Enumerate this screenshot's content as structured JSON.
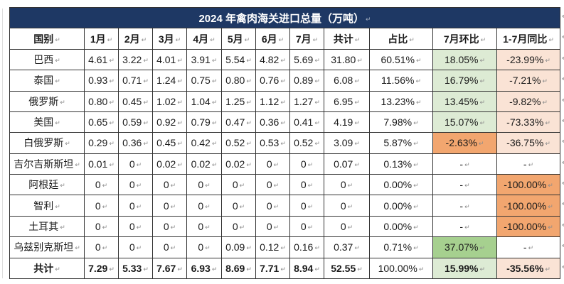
{
  "title": "2024 年禽肉海关进口总量（万吨）",
  "columns": [
    "国别",
    "1月",
    "2月",
    "3月",
    "4月",
    "5月",
    "6月",
    "7月",
    "共计",
    "占比",
    "7月环比",
    "1-7月同比"
  ],
  "rows": [
    {
      "label": "巴西",
      "cells": [
        "4.61",
        "3.22",
        "4.01",
        "3.91",
        "5.54",
        "4.82",
        "5.69",
        "31.80",
        "60.51%"
      ],
      "mom": "18.05%",
      "mom_style": "green",
      "yoy": "-23.99%",
      "yoy_style": "peach",
      "bold": false
    },
    {
      "label": "泰国",
      "cells": [
        "0.93",
        "0.71",
        "1.24",
        "0.75",
        "0.80",
        "0.76",
        "0.89",
        "6.08",
        "11.56%"
      ],
      "mom": "16.79%",
      "mom_style": "green",
      "yoy": "-7.21%",
      "yoy_style": "peach",
      "bold": false
    },
    {
      "label": "俄罗斯",
      "cells": [
        "0.80",
        "0.45",
        "1.02",
        "1.04",
        "1.25",
        "1.12",
        "1.27",
        "6.95",
        "13.23%"
      ],
      "mom": "13.45%",
      "mom_style": "green",
      "yoy": "-9.82%",
      "yoy_style": "peach",
      "bold": false
    },
    {
      "label": "美国",
      "cells": [
        "0.65",
        "0.59",
        "0.92",
        "0.79",
        "0.47",
        "0.36",
        "0.41",
        "4.19",
        "7.98%"
      ],
      "mom": "15.07%",
      "mom_style": "green",
      "yoy": "-73.33%",
      "yoy_style": "peach",
      "bold": false
    },
    {
      "label": "白俄罗斯",
      "cells": [
        "0.29",
        "0.36",
        "0.45",
        "0.42",
        "0.52",
        "0.53",
        "0.52",
        "3.09",
        "5.87%"
      ],
      "mom": "-2.63%",
      "mom_style": "orange",
      "yoy": "-36.75%",
      "yoy_style": "peach",
      "bold": false
    },
    {
      "label": "吉尔吉斯斯坦",
      "cells": [
        "0.01",
        "0",
        "0.02",
        "0.02",
        "0.02",
        "0",
        "0",
        "0.07",
        "0.13%"
      ],
      "mom": "-",
      "mom_style": "none",
      "yoy": "-",
      "yoy_style": "none",
      "bold": false
    },
    {
      "label": "阿根廷",
      "cells": [
        "0",
        "0",
        "0",
        "0",
        "0",
        "0",
        "0",
        "0",
        "0.00%"
      ],
      "mom": "-",
      "mom_style": "none",
      "yoy": "-100.00%",
      "yoy_style": "orange",
      "bold": false
    },
    {
      "label": "智利",
      "cells": [
        "0",
        "0",
        "0",
        "0",
        "0",
        "0",
        "0",
        "0",
        "0.00%"
      ],
      "mom": "-",
      "mom_style": "none",
      "yoy": "-100.00%",
      "yoy_style": "orange",
      "bold": false
    },
    {
      "label": "土耳其",
      "cells": [
        "0",
        "0",
        "0",
        "0",
        "0",
        "0",
        "0",
        "0",
        "0.00%"
      ],
      "mom": "-",
      "mom_style": "none",
      "yoy": "-100.00%",
      "yoy_style": "orange",
      "bold": false
    },
    {
      "label": "乌兹别克斯坦",
      "cells": [
        "0",
        "0",
        "0",
        "0",
        "0.09",
        "0.12",
        "0.16",
        "0.37",
        "0.71%"
      ],
      "mom": "37.07%",
      "mom_style": "green-dark",
      "yoy": "-",
      "yoy_style": "none",
      "bold": false
    },
    {
      "label": "共计",
      "cells": [
        "7.29",
        "5.33",
        "7.67",
        "6.93",
        "8.69",
        "7.71",
        "8.94",
        "52.55",
        "100.00%"
      ],
      "mom": "15.99%",
      "mom_style": "green",
      "yoy": "-35.56%",
      "yoy_style": "peach",
      "bold": true
    }
  ],
  "colors": {
    "navy": "#1E3864",
    "green": "#DDEBD4",
    "green-dark": "#A6D08F",
    "orange": "#F2A66F",
    "peach": "#FAE3D5",
    "mark": "#8C8C8C"
  },
  "marks": {
    "pilcrow": "↵"
  }
}
